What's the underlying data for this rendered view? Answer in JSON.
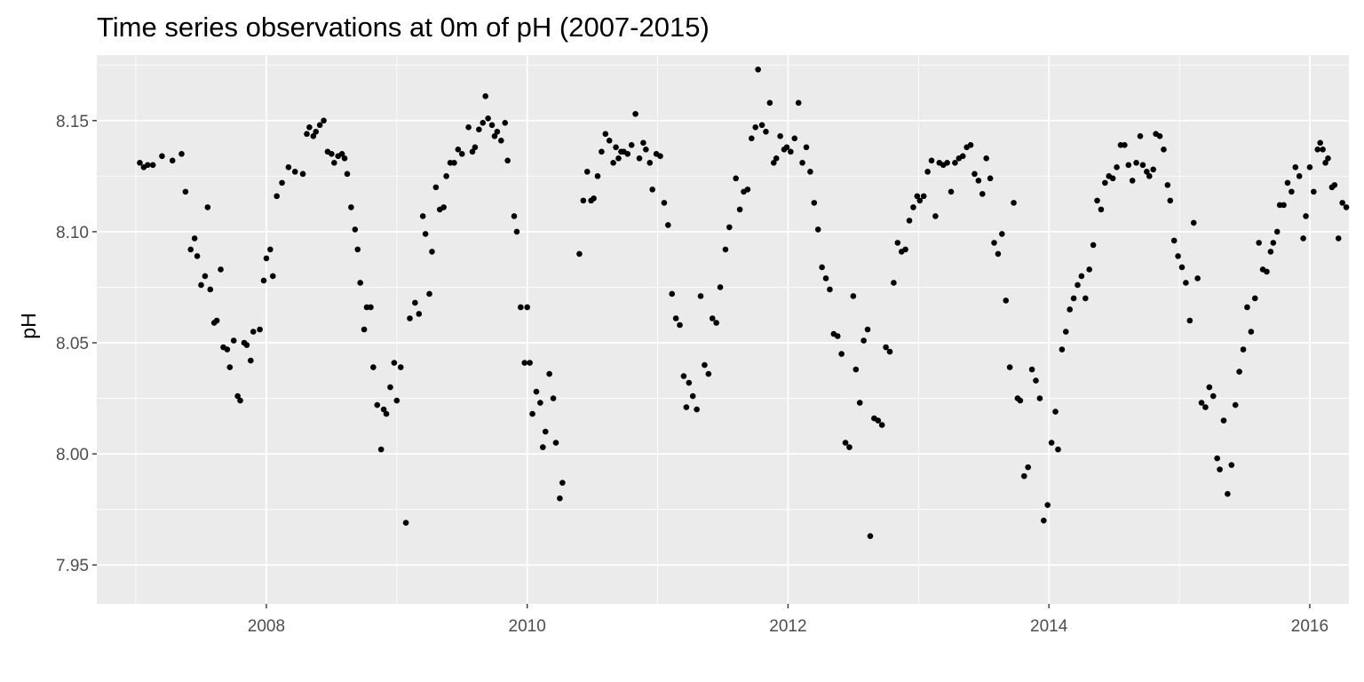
{
  "chart_data": {
    "type": "scatter",
    "title": "Time series observations at 0m of pH (2007-2015)",
    "xlabel": "",
    "ylabel": "pH",
    "xlim": [
      2006.7,
      2016.3
    ],
    "ylim": [
      7.9325,
      8.1795
    ],
    "x_ticks": [
      {
        "value": 2008,
        "label": "2008"
      },
      {
        "value": 2010,
        "label": "2010"
      },
      {
        "value": 2012,
        "label": "2012"
      },
      {
        "value": 2014,
        "label": "2014"
      },
      {
        "value": 2016,
        "label": "2016"
      }
    ],
    "y_ticks": [
      {
        "value": 7.95,
        "label": "7.95"
      },
      {
        "value": 8.0,
        "label": "8.00"
      },
      {
        "value": 8.05,
        "label": "8.05"
      },
      {
        "value": 8.1,
        "label": "8.10"
      },
      {
        "value": 8.15,
        "label": "8.15"
      }
    ],
    "grid": true,
    "background": "#ebebeb",
    "point_color": "#000000",
    "grid_color": "#ffffff",
    "points": [
      [
        2007.03,
        8.131
      ],
      [
        2007.06,
        8.129
      ],
      [
        2007.09,
        8.13
      ],
      [
        2007.13,
        8.13
      ],
      [
        2007.2,
        8.134
      ],
      [
        2007.28,
        8.132
      ],
      [
        2007.35,
        8.135
      ],
      [
        2007.38,
        8.118
      ],
      [
        2007.42,
        8.092
      ],
      [
        2007.45,
        8.097
      ],
      [
        2007.47,
        8.089
      ],
      [
        2007.5,
        8.076
      ],
      [
        2007.53,
        8.08
      ],
      [
        2007.55,
        8.111
      ],
      [
        2007.57,
        8.074
      ],
      [
        2007.6,
        8.059
      ],
      [
        2007.62,
        8.06
      ],
      [
        2007.65,
        8.083
      ],
      [
        2007.67,
        8.048
      ],
      [
        2007.7,
        8.047
      ],
      [
        2007.72,
        8.039
      ],
      [
        2007.75,
        8.051
      ],
      [
        2007.78,
        8.026
      ],
      [
        2007.8,
        8.024
      ],
      [
        2007.83,
        8.05
      ],
      [
        2007.85,
        8.049
      ],
      [
        2007.88,
        8.042
      ],
      [
        2007.9,
        8.055
      ],
      [
        2007.95,
        8.056
      ],
      [
        2007.98,
        8.078
      ],
      [
        2008.0,
        8.088
      ],
      [
        2008.03,
        8.092
      ],
      [
        2008.05,
        8.08
      ],
      [
        2008.08,
        8.116
      ],
      [
        2008.12,
        8.122
      ],
      [
        2008.17,
        8.129
      ],
      [
        2008.22,
        8.127
      ],
      [
        2008.28,
        8.126
      ],
      [
        2008.31,
        8.144
      ],
      [
        2008.33,
        8.147
      ],
      [
        2008.36,
        8.143
      ],
      [
        2008.38,
        8.145
      ],
      [
        2008.41,
        8.148
      ],
      [
        2008.44,
        8.15
      ],
      [
        2008.47,
        8.136
      ],
      [
        2008.5,
        8.135
      ],
      [
        2008.52,
        8.131
      ],
      [
        2008.55,
        8.134
      ],
      [
        2008.58,
        8.135
      ],
      [
        2008.6,
        8.133
      ],
      [
        2008.62,
        8.126
      ],
      [
        2008.65,
        8.111
      ],
      [
        2008.68,
        8.101
      ],
      [
        2008.7,
        8.092
      ],
      [
        2008.72,
        8.077
      ],
      [
        2008.75,
        8.056
      ],
      [
        2008.77,
        8.066
      ],
      [
        2008.8,
        8.066
      ],
      [
        2008.82,
        8.039
      ],
      [
        2008.85,
        8.022
      ],
      [
        2008.88,
        8.002
      ],
      [
        2008.9,
        8.02
      ],
      [
        2008.92,
        8.018
      ],
      [
        2008.95,
        8.03
      ],
      [
        2008.98,
        8.041
      ],
      [
        2009.0,
        8.024
      ],
      [
        2009.03,
        8.039
      ],
      [
        2009.07,
        7.969
      ],
      [
        2009.1,
        8.061
      ],
      [
        2009.14,
        8.068
      ],
      [
        2009.17,
        8.063
      ],
      [
        2009.2,
        8.107
      ],
      [
        2009.22,
        8.099
      ],
      [
        2009.25,
        8.072
      ],
      [
        2009.27,
        8.091
      ],
      [
        2009.3,
        8.12
      ],
      [
        2009.33,
        8.11
      ],
      [
        2009.36,
        8.111
      ],
      [
        2009.38,
        8.125
      ],
      [
        2009.41,
        8.131
      ],
      [
        2009.44,
        8.131
      ],
      [
        2009.47,
        8.137
      ],
      [
        2009.5,
        8.135
      ],
      [
        2009.55,
        8.147
      ],
      [
        2009.58,
        8.136
      ],
      [
        2009.6,
        8.138
      ],
      [
        2009.63,
        8.146
      ],
      [
        2009.66,
        8.149
      ],
      [
        2009.68,
        8.161
      ],
      [
        2009.7,
        8.151
      ],
      [
        2009.73,
        8.148
      ],
      [
        2009.75,
        8.143
      ],
      [
        2009.77,
        8.145
      ],
      [
        2009.8,
        8.141
      ],
      [
        2009.83,
        8.149
      ],
      [
        2009.85,
        8.132
      ],
      [
        2009.9,
        8.107
      ],
      [
        2009.92,
        8.1
      ],
      [
        2009.95,
        8.066
      ],
      [
        2009.98,
        8.041
      ],
      [
        2010.0,
        8.066
      ],
      [
        2010.02,
        8.041
      ],
      [
        2010.04,
        8.018
      ],
      [
        2010.07,
        8.028
      ],
      [
        2010.1,
        8.023
      ],
      [
        2010.12,
        8.003
      ],
      [
        2010.14,
        8.01
      ],
      [
        2010.17,
        8.036
      ],
      [
        2010.2,
        8.025
      ],
      [
        2010.22,
        8.005
      ],
      [
        2010.25,
        7.98
      ],
      [
        2010.27,
        7.987
      ],
      [
        2010.4,
        8.09
      ],
      [
        2010.43,
        8.114
      ],
      [
        2010.46,
        8.127
      ],
      [
        2010.49,
        8.114
      ],
      [
        2010.51,
        8.115
      ],
      [
        2010.54,
        8.125
      ],
      [
        2010.57,
        8.136
      ],
      [
        2010.6,
        8.144
      ],
      [
        2010.63,
        8.141
      ],
      [
        2010.66,
        8.131
      ],
      [
        2010.68,
        8.138
      ],
      [
        2010.7,
        8.133
      ],
      [
        2010.72,
        8.136
      ],
      [
        2010.74,
        8.136
      ],
      [
        2010.77,
        8.135
      ],
      [
        2010.8,
        8.139
      ],
      [
        2010.83,
        8.153
      ],
      [
        2010.86,
        8.133
      ],
      [
        2010.89,
        8.14
      ],
      [
        2010.91,
        8.137
      ],
      [
        2010.94,
        8.131
      ],
      [
        2010.96,
        8.119
      ],
      [
        2010.99,
        8.135
      ],
      [
        2011.02,
        8.134
      ],
      [
        2011.05,
        8.113
      ],
      [
        2011.08,
        8.103
      ],
      [
        2011.11,
        8.072
      ],
      [
        2011.14,
        8.061
      ],
      [
        2011.17,
        8.058
      ],
      [
        2011.2,
        8.035
      ],
      [
        2011.22,
        8.021
      ],
      [
        2011.24,
        8.032
      ],
      [
        2011.27,
        8.026
      ],
      [
        2011.3,
        8.02
      ],
      [
        2011.33,
        8.071
      ],
      [
        2011.36,
        8.04
      ],
      [
        2011.39,
        8.036
      ],
      [
        2011.42,
        8.061
      ],
      [
        2011.45,
        8.059
      ],
      [
        2011.48,
        8.075
      ],
      [
        2011.52,
        8.092
      ],
      [
        2011.55,
        8.102
      ],
      [
        2011.6,
        8.124
      ],
      [
        2011.63,
        8.11
      ],
      [
        2011.66,
        8.118
      ],
      [
        2011.69,
        8.119
      ],
      [
        2011.72,
        8.142
      ],
      [
        2011.75,
        8.147
      ],
      [
        2011.77,
        8.173
      ],
      [
        2011.8,
        8.148
      ],
      [
        2011.83,
        8.145
      ],
      [
        2011.86,
        8.158
      ],
      [
        2011.89,
        8.131
      ],
      [
        2011.91,
        8.133
      ],
      [
        2011.94,
        8.143
      ],
      [
        2011.97,
        8.137
      ],
      [
        2011.99,
        8.138
      ],
      [
        2012.02,
        8.136
      ],
      [
        2012.05,
        8.142
      ],
      [
        2012.08,
        8.158
      ],
      [
        2012.11,
        8.131
      ],
      [
        2012.14,
        8.138
      ],
      [
        2012.17,
        8.127
      ],
      [
        2012.2,
        8.113
      ],
      [
        2012.23,
        8.101
      ],
      [
        2012.26,
        8.084
      ],
      [
        2012.29,
        8.079
      ],
      [
        2012.32,
        8.074
      ],
      [
        2012.35,
        8.054
      ],
      [
        2012.38,
        8.053
      ],
      [
        2012.41,
        8.045
      ],
      [
        2012.44,
        8.005
      ],
      [
        2012.47,
        8.003
      ],
      [
        2012.5,
        8.071
      ],
      [
        2012.52,
        8.038
      ],
      [
        2012.55,
        8.023
      ],
      [
        2012.58,
        8.051
      ],
      [
        2012.61,
        8.056
      ],
      [
        2012.63,
        7.963
      ],
      [
        2012.66,
        8.016
      ],
      [
        2012.69,
        8.015
      ],
      [
        2012.72,
        8.013
      ],
      [
        2012.75,
        8.048
      ],
      [
        2012.78,
        8.046
      ],
      [
        2012.81,
        8.077
      ],
      [
        2012.84,
        8.095
      ],
      [
        2012.87,
        8.091
      ],
      [
        2012.9,
        8.092
      ],
      [
        2012.93,
        8.105
      ],
      [
        2012.96,
        8.111
      ],
      [
        2012.99,
        8.116
      ],
      [
        2013.01,
        8.114
      ],
      [
        2013.04,
        8.116
      ],
      [
        2013.07,
        8.127
      ],
      [
        2013.1,
        8.132
      ],
      [
        2013.13,
        8.107
      ],
      [
        2013.16,
        8.131
      ],
      [
        2013.19,
        8.13
      ],
      [
        2013.22,
        8.131
      ],
      [
        2013.25,
        8.118
      ],
      [
        2013.28,
        8.131
      ],
      [
        2013.31,
        8.133
      ],
      [
        2013.34,
        8.134
      ],
      [
        2013.37,
        8.138
      ],
      [
        2013.4,
        8.139
      ],
      [
        2013.43,
        8.126
      ],
      [
        2013.46,
        8.123
      ],
      [
        2013.49,
        8.117
      ],
      [
        2013.52,
        8.133
      ],
      [
        2013.55,
        8.124
      ],
      [
        2013.58,
        8.095
      ],
      [
        2013.61,
        8.09
      ],
      [
        2013.64,
        8.099
      ],
      [
        2013.67,
        8.069
      ],
      [
        2013.7,
        8.039
      ],
      [
        2013.73,
        8.113
      ],
      [
        2013.76,
        8.025
      ],
      [
        2013.78,
        8.024
      ],
      [
        2013.81,
        7.99
      ],
      [
        2013.84,
        7.994
      ],
      [
        2013.87,
        8.038
      ],
      [
        2013.9,
        8.033
      ],
      [
        2013.93,
        8.025
      ],
      [
        2013.96,
        7.97
      ],
      [
        2013.99,
        7.977
      ],
      [
        2014.02,
        8.005
      ],
      [
        2014.05,
        8.019
      ],
      [
        2014.07,
        8.002
      ],
      [
        2014.1,
        8.047
      ],
      [
        2014.13,
        8.055
      ],
      [
        2014.16,
        8.065
      ],
      [
        2014.19,
        8.07
      ],
      [
        2014.22,
        8.076
      ],
      [
        2014.25,
        8.08
      ],
      [
        2014.28,
        8.07
      ],
      [
        2014.31,
        8.083
      ],
      [
        2014.34,
        8.094
      ],
      [
        2014.37,
        8.114
      ],
      [
        2014.4,
        8.11
      ],
      [
        2014.43,
        8.122
      ],
      [
        2014.46,
        8.125
      ],
      [
        2014.49,
        8.124
      ],
      [
        2014.52,
        8.129
      ],
      [
        2014.55,
        8.139
      ],
      [
        2014.58,
        8.139
      ],
      [
        2014.61,
        8.13
      ],
      [
        2014.64,
        8.123
      ],
      [
        2014.67,
        8.131
      ],
      [
        2014.7,
        8.143
      ],
      [
        2014.72,
        8.13
      ],
      [
        2014.75,
        8.127
      ],
      [
        2014.77,
        8.125
      ],
      [
        2014.8,
        8.128
      ],
      [
        2014.82,
        8.144
      ],
      [
        2014.85,
        8.143
      ],
      [
        2014.88,
        8.137
      ],
      [
        2014.91,
        8.121
      ],
      [
        2014.93,
        8.114
      ],
      [
        2014.96,
        8.096
      ],
      [
        2014.99,
        8.089
      ],
      [
        2015.02,
        8.084
      ],
      [
        2015.05,
        8.077
      ],
      [
        2015.08,
        8.06
      ],
      [
        2015.11,
        8.104
      ],
      [
        2015.14,
        8.079
      ],
      [
        2015.17,
        8.023
      ],
      [
        2015.2,
        8.021
      ],
      [
        2015.23,
        8.03
      ],
      [
        2015.26,
        8.026
      ],
      [
        2015.29,
        7.998
      ],
      [
        2015.31,
        7.993
      ],
      [
        2015.34,
        8.015
      ],
      [
        2015.37,
        7.982
      ],
      [
        2015.4,
        7.995
      ],
      [
        2015.43,
        8.022
      ],
      [
        2015.46,
        8.037
      ],
      [
        2015.49,
        8.047
      ],
      [
        2015.52,
        8.066
      ],
      [
        2015.55,
        8.055
      ],
      [
        2015.58,
        8.07
      ],
      [
        2015.61,
        8.095
      ],
      [
        2015.64,
        8.083
      ],
      [
        2015.67,
        8.082
      ],
      [
        2015.7,
        8.091
      ],
      [
        2015.72,
        8.095
      ],
      [
        2015.75,
        8.1
      ],
      [
        2015.77,
        8.112
      ],
      [
        2015.8,
        8.112
      ],
      [
        2015.83,
        8.122
      ],
      [
        2015.86,
        8.118
      ],
      [
        2015.89,
        8.129
      ],
      [
        2015.92,
        8.125
      ],
      [
        2015.95,
        8.097
      ],
      [
        2015.97,
        8.107
      ],
      [
        2016.0,
        8.129
      ],
      [
        2016.03,
        8.118
      ],
      [
        2016.06,
        8.137
      ],
      [
        2016.08,
        8.14
      ],
      [
        2016.1,
        8.137
      ],
      [
        2016.12,
        8.131
      ],
      [
        2016.14,
        8.133
      ],
      [
        2016.17,
        8.12
      ],
      [
        2016.19,
        8.121
      ],
      [
        2016.22,
        8.097
      ],
      [
        2016.25,
        8.113
      ],
      [
        2016.28,
        8.111
      ]
    ]
  }
}
